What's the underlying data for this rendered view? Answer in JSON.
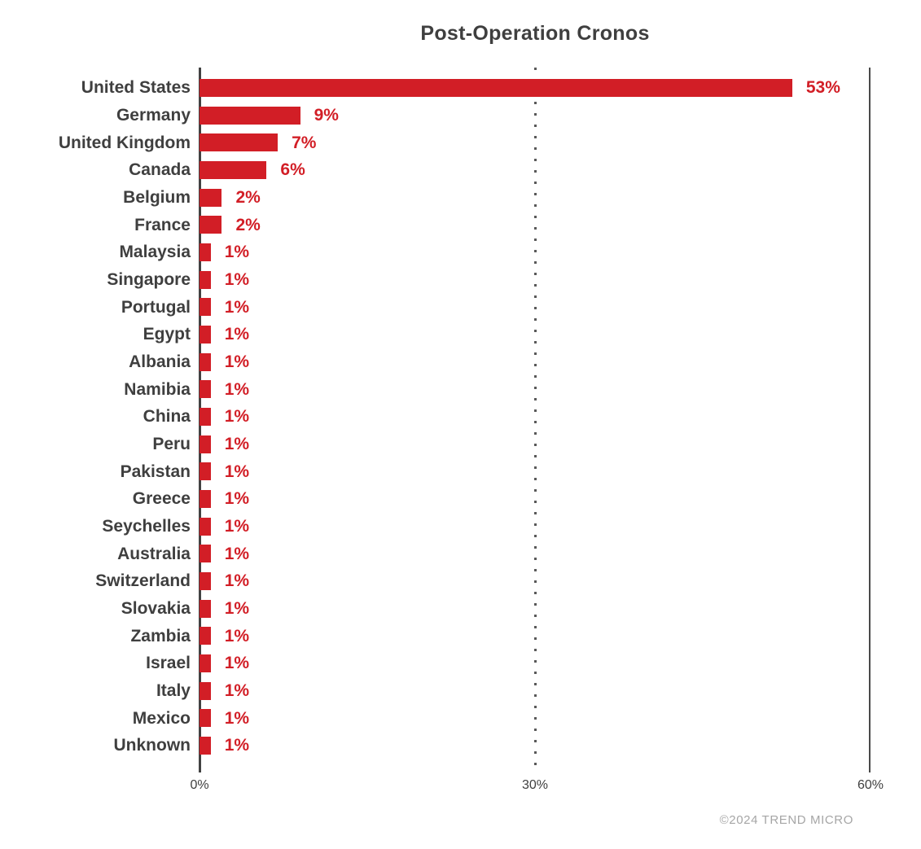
{
  "title": "Post-Operation Cronos",
  "footer": "©2024 TREND MICRO",
  "colors": {
    "bar": "#d21e26",
    "value_label": "#d21e26",
    "category_label": "#3f3f3f",
    "title": "#3f3f3f",
    "axis_line": "#424242",
    "gridline_dotted": "#595959",
    "tick_label": "#3f3f3f",
    "footer": "#a6a6a6",
    "background": "#ffffff"
  },
  "chart_data": {
    "type": "bar",
    "orientation": "horizontal",
    "title": "Post-Operation Cronos",
    "categories": [
      "United States",
      "Germany",
      "United Kingdom",
      "Canada",
      "Belgium",
      "France",
      "Malaysia",
      "Singapore",
      "Portugal",
      "Egypt",
      "Albania",
      "Namibia",
      "China",
      "Peru",
      "Pakistan",
      "Greece",
      "Seychelles",
      "Australia",
      "Switzerland",
      "Slovakia",
      "Zambia",
      "Israel",
      "Italy",
      "Mexico",
      "Unknown"
    ],
    "values": [
      53,
      9,
      7,
      6,
      2,
      2,
      1,
      1,
      1,
      1,
      1,
      1,
      1,
      1,
      1,
      1,
      1,
      1,
      1,
      1,
      1,
      1,
      1,
      1,
      1
    ],
    "value_labels": [
      "53%",
      "9%",
      "7%",
      "6%",
      "2%",
      "2%",
      "1%",
      "1%",
      "1%",
      "1%",
      "1%",
      "1%",
      "1%",
      "1%",
      "1%",
      "1%",
      "1%",
      "1%",
      "1%",
      "1%",
      "1%",
      "1%",
      "1%",
      "1%",
      "1%"
    ],
    "xlabel": "",
    "ylabel": "",
    "xlim": [
      0,
      60
    ],
    "x_ticks": [
      "0%",
      "30%",
      "60%"
    ],
    "x_tick_values": [
      0,
      30,
      60
    ],
    "grid": "solid vertical boundary lines at 0% and 60%, dotted vertical gridline at 30%",
    "legend": "none",
    "bar_color": "#d21e26",
    "annotations": "red percentage value label to the right of each bar"
  }
}
